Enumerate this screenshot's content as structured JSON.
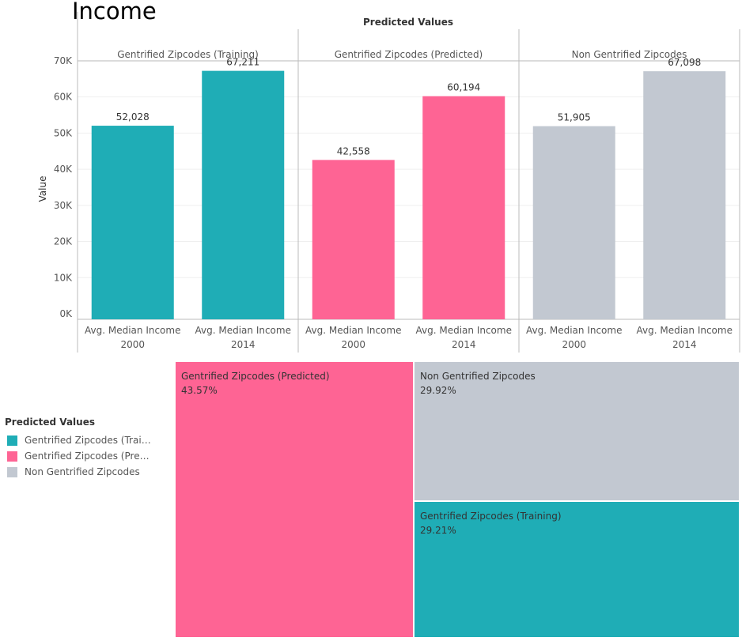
{
  "page": {
    "title": "Income"
  },
  "colors": {
    "training": "#1fadb6",
    "predicted": "#fe6494",
    "non": "#c2c8d1",
    "axis": "#bbbbbb",
    "grid": "#efefef",
    "text": "#333333"
  },
  "chart_data": [
    {
      "type": "bar",
      "title": "Predicted Values",
      "ylabel": "Value",
      "ylim": [
        0,
        75000
      ],
      "yticks": [
        0,
        10000,
        20000,
        30000,
        40000,
        50000,
        60000,
        70000
      ],
      "ytick_labels": [
        "0K",
        "10K",
        "20K",
        "30K",
        "40K",
        "50K",
        "60K",
        "70K"
      ],
      "grid": true,
      "panels": [
        {
          "name": "Gentrified Zipcodes (Training)",
          "color_key": "training",
          "categories": [
            [
              "Avg. Median Income",
              "2000"
            ],
            [
              "Avg. Median Income",
              "2014"
            ]
          ],
          "values": [
            52028,
            67211
          ],
          "data_labels": [
            "52,028",
            "67,211"
          ]
        },
        {
          "name": "Gentrified Zipcodes (Predicted)",
          "color_key": "predicted",
          "categories": [
            [
              "Avg. Median Income",
              "2000"
            ],
            [
              "Avg. Median Income",
              "2014"
            ]
          ],
          "values": [
            42558,
            60194
          ],
          "data_labels": [
            "42,558",
            "60,194"
          ]
        },
        {
          "name": "Non Gentrified Zipcodes",
          "color_key": "non",
          "categories": [
            [
              "Avg. Median Income",
              "2000"
            ],
            [
              "Avg. Median Income",
              "2014"
            ]
          ],
          "values": [
            51905,
            67098
          ],
          "data_labels": [
            "51,905",
            "67,098"
          ]
        }
      ]
    },
    {
      "type": "treemap",
      "tiles": [
        {
          "name": "Gentrified Zipcodes (Predicted)",
          "percent_label": "43.57%",
          "value": 43.57,
          "color_key": "predicted"
        },
        {
          "name": "Non Gentrified Zipcodes",
          "percent_label": "29.92%",
          "value": 29.92,
          "color_key": "non"
        },
        {
          "name": "Gentrified Zipcodes (Training)",
          "percent_label": "29.21%",
          "value": 29.21,
          "color_key": "training"
        }
      ]
    }
  ],
  "legend": {
    "title": "Predicted Values",
    "items": [
      {
        "label": "Gentrified Zipcodes (Traini...",
        "color_key": "training"
      },
      {
        "label": "Gentrified Zipcodes (Predic...",
        "color_key": "predicted"
      },
      {
        "label": "Non Gentrified Zipcodes",
        "color_key": "non"
      }
    ]
  }
}
